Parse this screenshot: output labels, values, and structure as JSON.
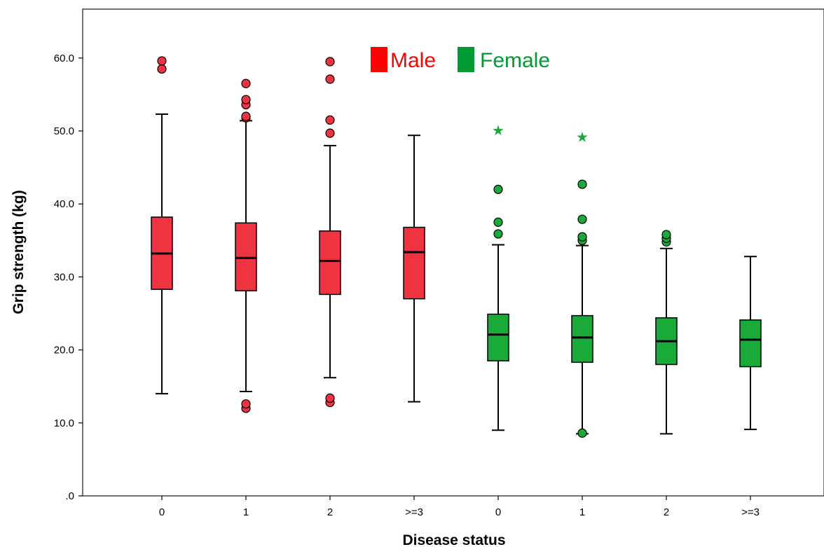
{
  "chart_data": {
    "type": "boxplot",
    "xlabel": "Disease status",
    "ylabel": "Grip strength (kg)",
    "ylim": [
      0,
      60
    ],
    "y_ticks": [
      ".0",
      "10.0",
      "20.0",
      "30.0",
      "40.0",
      "50.0",
      "60.0"
    ],
    "categories": [
      "0",
      "1",
      "2",
      ">=3",
      "0",
      "1",
      "2",
      ">=3"
    ],
    "legend": [
      {
        "label": "Male",
        "color": "#ff0000"
      },
      {
        "label": "Female",
        "color": "#009933"
      }
    ],
    "legend_position": "top-center",
    "series": [
      {
        "name": "Male",
        "fill": "#ef3340",
        "outlier_fill": "#ef3340",
        "boxes": [
          {
            "category": "0",
            "whisker_low": 14.0,
            "q1": 28.3,
            "median": 33.2,
            "q3": 38.2,
            "whisker_high": 52.3,
            "outliers": [
              58.5,
              59.6
            ],
            "extremes": []
          },
          {
            "category": "1",
            "whisker_low": 14.3,
            "q1": 28.1,
            "median": 32.6,
            "q3": 37.4,
            "whisker_high": 51.4,
            "outliers": [
              12.0,
              12.6,
              51.8,
              52.0,
              53.6,
              54.3,
              56.5
            ],
            "extremes": []
          },
          {
            "category": "2",
            "whisker_low": 16.2,
            "q1": 27.6,
            "median": 32.2,
            "q3": 36.3,
            "whisker_high": 48.0,
            "outliers": [
              12.8,
              13.4,
              49.7,
              51.5,
              57.1,
              59.5
            ],
            "extremes": []
          },
          {
            "category": ">=3",
            "whisker_low": 12.9,
            "q1": 27.0,
            "median": 33.4,
            "q3": 36.8,
            "whisker_high": 49.4,
            "outliers": [],
            "extremes": []
          }
        ]
      },
      {
        "name": "Female",
        "fill": "#1aaa3a",
        "outlier_fill": "#1aaa3a",
        "boxes": [
          {
            "category": "0",
            "whisker_low": 9.0,
            "q1": 18.5,
            "median": 22.1,
            "q3": 24.9,
            "whisker_high": 34.4,
            "outliers": [
              35.9,
              37.5,
              42.0
            ],
            "extremes": [
              50.2
            ]
          },
          {
            "category": "1",
            "whisker_low": 8.5,
            "q1": 18.3,
            "median": 21.7,
            "q3": 24.7,
            "whisker_high": 34.3,
            "outliers": [
              8.6,
              35.0,
              35.5,
              37.9,
              42.7
            ],
            "extremes": [
              49.3
            ]
          },
          {
            "category": "2",
            "whisker_low": 8.5,
            "q1": 18.0,
            "median": 21.2,
            "q3": 24.4,
            "whisker_high": 33.9,
            "outliers": [
              34.8,
              35.3,
              35.8
            ],
            "extremes": []
          },
          {
            "category": ">=3",
            "whisker_low": 9.1,
            "q1": 17.7,
            "median": 21.4,
            "q3": 24.1,
            "whisker_high": 32.8,
            "outliers": [],
            "extremes": []
          }
        ]
      }
    ]
  }
}
